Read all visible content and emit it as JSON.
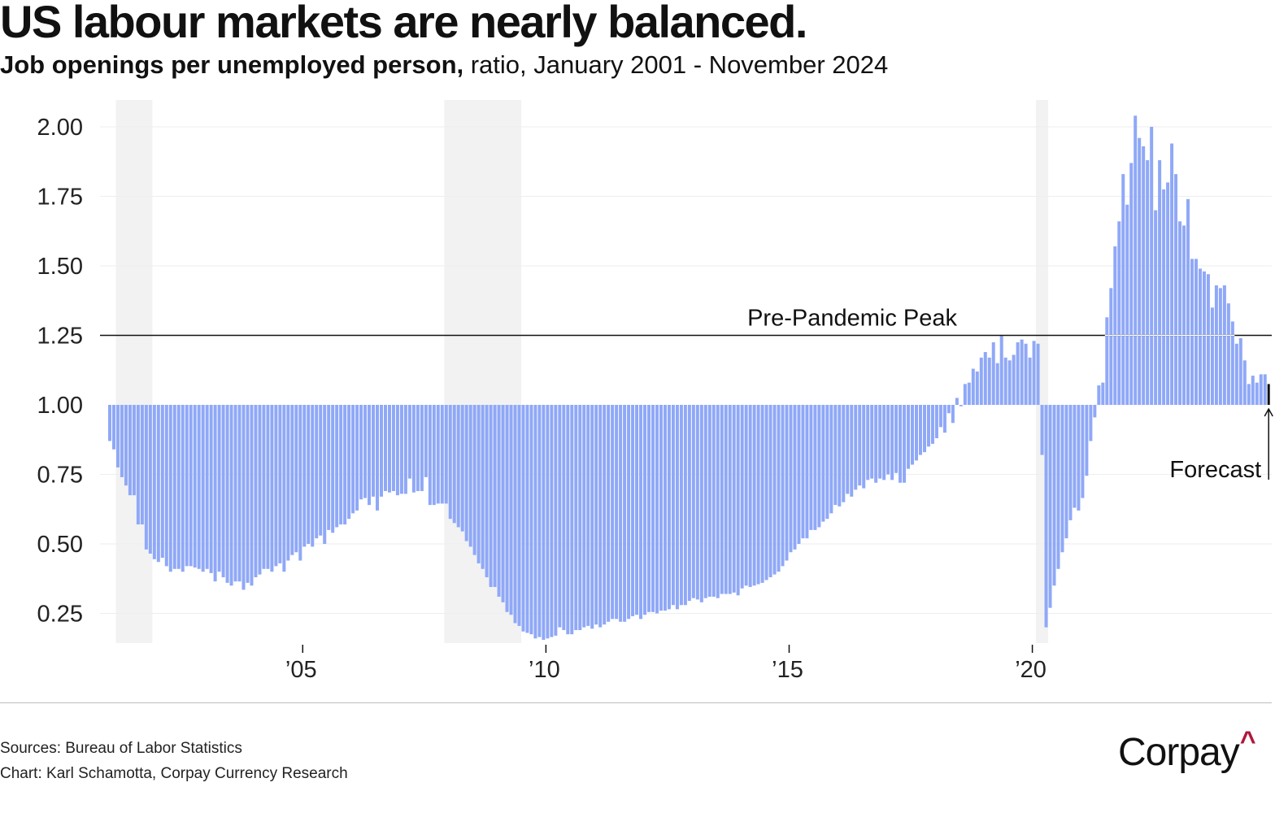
{
  "header": {
    "title": "US labour markets are nearly balanced.",
    "subtitle_bold": "Job openings per unemployed person,",
    "subtitle_rest": " ratio, January 2001 - November 2024"
  },
  "footer": {
    "sources": "Sources: Bureau of Labor Statistics",
    "credit": "Chart: Karl Schamotta, Corpay Currency Research",
    "logo_text": "Corpay",
    "logo_caret": "^"
  },
  "colors": {
    "bar": "#8fa8f7",
    "recession_shade": "#f2f2f2",
    "gridline": "#eeeeee",
    "forecast_bar": "#111111",
    "logo_accent": "#b0173d"
  },
  "chart_data": {
    "type": "bar",
    "title": "US labour markets are nearly balanced.",
    "subtitle": "Job openings per unemployed person, ratio, January 2001 - November 2024",
    "xlabel": "",
    "ylabel": "",
    "baseline": 1.0,
    "ylim": [
      0.15,
      2.08
    ],
    "yticks": [
      0.25,
      0.5,
      0.75,
      1.0,
      1.25,
      1.5,
      1.75,
      2.0
    ],
    "ytick_labels": [
      "0.25",
      "0.50",
      "0.75",
      "1.00",
      "1.25",
      "1.50",
      "1.75",
      "2.00"
    ],
    "xticks": [
      {
        "year": 2005,
        "label": "’05"
      },
      {
        "year": 2010,
        "label": "’10"
      },
      {
        "year": 2015,
        "label": "’15"
      },
      {
        "year": 2020,
        "label": "’20"
      }
    ],
    "grid": true,
    "start": "2001-01",
    "end": "2024-11",
    "frequency": "monthly",
    "recessions": [
      {
        "start": "2001-03",
        "end": "2001-11"
      },
      {
        "start": "2007-12",
        "end": "2009-06"
      },
      {
        "start": "2020-02",
        "end": "2020-04"
      }
    ],
    "reference_line": {
      "value": 1.25,
      "label": "Pre-Pandemic Peak"
    },
    "forecast": {
      "label": "Forecast",
      "month": "2024-11",
      "value": 1.075
    },
    "values": [
      0.87,
      0.84,
      0.775,
      0.74,
      0.71,
      0.675,
      0.675,
      0.57,
      0.57,
      0.48,
      0.465,
      0.445,
      0.435,
      0.45,
      0.42,
      0.4,
      0.41,
      0.41,
      0.4,
      0.42,
      0.42,
      0.415,
      0.41,
      0.4,
      0.41,
      0.395,
      0.365,
      0.4,
      0.38,
      0.36,
      0.35,
      0.365,
      0.365,
      0.335,
      0.36,
      0.35,
      0.38,
      0.39,
      0.41,
      0.41,
      0.4,
      0.42,
      0.43,
      0.4,
      0.44,
      0.46,
      0.47,
      0.44,
      0.49,
      0.5,
      0.49,
      0.52,
      0.53,
      0.5,
      0.55,
      0.54,
      0.56,
      0.57,
      0.57,
      0.59,
      0.61,
      0.62,
      0.66,
      0.665,
      0.64,
      0.67,
      0.62,
      0.67,
      0.69,
      0.685,
      0.69,
      0.675,
      0.68,
      0.68,
      0.735,
      0.685,
      0.69,
      0.69,
      0.74,
      0.64,
      0.64,
      0.645,
      0.645,
      0.645,
      0.59,
      0.575,
      0.56,
      0.545,
      0.51,
      0.49,
      0.46,
      0.43,
      0.41,
      0.38,
      0.345,
      0.345,
      0.31,
      0.29,
      0.255,
      0.245,
      0.215,
      0.205,
      0.185,
      0.18,
      0.175,
      0.16,
      0.165,
      0.155,
      0.16,
      0.165,
      0.17,
      0.2,
      0.19,
      0.175,
      0.175,
      0.19,
      0.19,
      0.2,
      0.205,
      0.195,
      0.21,
      0.2,
      0.21,
      0.22,
      0.23,
      0.23,
      0.22,
      0.22,
      0.23,
      0.24,
      0.245,
      0.23,
      0.245,
      0.255,
      0.255,
      0.25,
      0.26,
      0.26,
      0.265,
      0.28,
      0.265,
      0.28,
      0.28,
      0.295,
      0.305,
      0.3,
      0.29,
      0.305,
      0.31,
      0.31,
      0.305,
      0.32,
      0.32,
      0.32,
      0.325,
      0.315,
      0.34,
      0.35,
      0.345,
      0.35,
      0.355,
      0.36,
      0.37,
      0.38,
      0.39,
      0.4,
      0.42,
      0.44,
      0.47,
      0.48,
      0.5,
      0.52,
      0.52,
      0.55,
      0.55,
      0.56,
      0.58,
      0.59,
      0.61,
      0.64,
      0.635,
      0.65,
      0.68,
      0.67,
      0.695,
      0.71,
      0.7,
      0.73,
      0.735,
      0.72,
      0.735,
      0.73,
      0.75,
      0.73,
      0.755,
      0.72,
      0.72,
      0.77,
      0.785,
      0.8,
      0.82,
      0.83,
      0.85,
      0.86,
      0.88,
      0.92,
      0.9,
      0.97,
      0.935,
      1.025,
      0.995,
      1.075,
      1.08,
      1.13,
      1.12,
      1.17,
      1.19,
      1.17,
      1.225,
      1.15,
      1.25,
      1.17,
      1.16,
      1.18,
      1.225,
      1.235,
      1.22,
      1.17,
      1.23,
      1.22,
      0.82,
      0.2,
      0.27,
      0.35,
      0.41,
      0.47,
      0.52,
      0.585,
      0.63,
      0.62,
      0.665,
      0.745,
      0.87,
      0.955,
      1.07,
      1.08,
      1.315,
      1.42,
      1.57,
      1.66,
      1.83,
      1.72,
      1.87,
      2.04,
      1.96,
      1.93,
      1.88,
      2.0,
      1.7,
      1.88,
      1.775,
      1.8,
      1.94,
      1.83,
      1.66,
      1.645,
      1.74,
      1.525,
      1.525,
      1.49,
      1.48,
      1.47,
      1.35,
      1.43,
      1.42,
      1.43,
      1.365,
      1.3,
      1.22,
      1.24,
      1.16,
      1.075,
      1.105,
      1.08,
      1.11,
      1.11,
      1.075
    ]
  }
}
